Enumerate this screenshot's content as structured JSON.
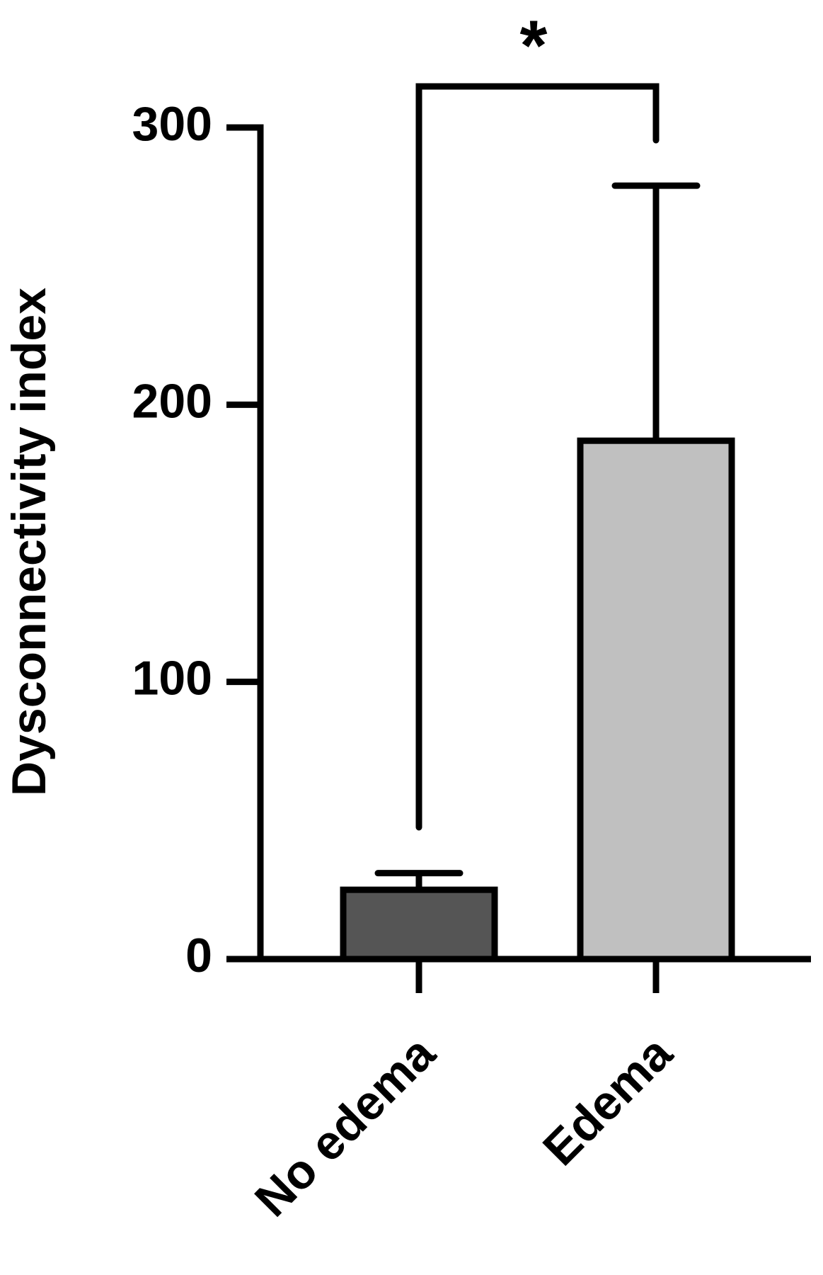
{
  "chart_data": {
    "type": "bar",
    "y_label": "Dysconnectivity index",
    "categories": [
      "No edema",
      "Edema"
    ],
    "values": [
      25,
      187
    ],
    "errors": [
      6,
      92
    ],
    "colors": [
      "#555555",
      "#c0c0c0"
    ],
    "ylim": [
      0,
      300
    ],
    "yticks": [
      0,
      100,
      200,
      300
    ],
    "annotation": "*"
  }
}
